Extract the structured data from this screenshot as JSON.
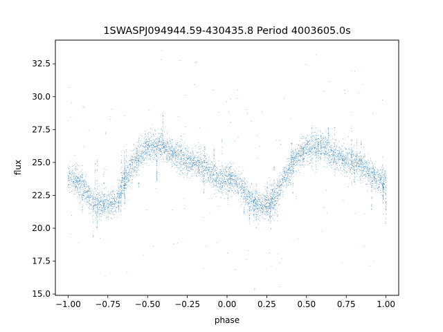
{
  "chart_data": {
    "type": "scatter",
    "title": "1SWASPJ094944.59-430435.8 Period 4003605.0s",
    "xlabel": "phase",
    "ylabel": "flux",
    "xlim": [
      -1.08,
      1.08
    ],
    "ylim": [
      14.9,
      34.3
    ],
    "xticks": [
      -1.0,
      -0.75,
      -0.5,
      -0.25,
      0.0,
      0.25,
      0.5,
      0.75,
      1.0
    ],
    "xtick_labels": [
      "−1.00",
      "−0.75",
      "−0.50",
      "−0.25",
      "0.00",
      "0.25",
      "0.50",
      "0.75",
      "1.00"
    ],
    "yticks": [
      15.0,
      17.5,
      20.0,
      22.5,
      25.0,
      27.5,
      30.0,
      32.5
    ],
    "ytick_labels": [
      "15.0",
      "17.5",
      "20.0",
      "22.5",
      "25.0",
      "27.5",
      "30.0",
      "32.5"
    ],
    "grid": false,
    "marker_color": "#1f77b4",
    "series": [
      {
        "x": [
          -1.0,
          -0.95,
          -0.9,
          -0.85,
          -0.8,
          -0.75,
          -0.7,
          -0.65,
          -0.6,
          -0.55,
          -0.5,
          -0.45,
          -0.4,
          -0.35,
          -0.3,
          -0.25,
          -0.2,
          -0.15,
          -0.1,
          -0.05,
          0.0,
          0.05,
          0.1,
          0.15,
          0.2,
          0.25,
          0.3,
          0.35,
          0.4,
          0.45,
          0.5,
          0.55,
          0.6,
          0.65,
          0.7,
          0.75,
          0.8,
          0.85,
          0.9,
          0.95,
          1.0
        ],
        "y": [
          23.9,
          23.6,
          23.0,
          22.2,
          21.8,
          21.7,
          22.0,
          23.6,
          24.6,
          25.6,
          26.1,
          26.3,
          26.3,
          25.7,
          25.4,
          25.1,
          25.0,
          24.7,
          24.2,
          23.7,
          23.9,
          23.6,
          23.0,
          22.2,
          21.8,
          21.7,
          22.0,
          23.6,
          24.6,
          25.6,
          26.1,
          26.3,
          26.3,
          25.7,
          25.4,
          25.1,
          25.0,
          24.7,
          24.2,
          23.7,
          23.6
        ]
      }
    ]
  }
}
